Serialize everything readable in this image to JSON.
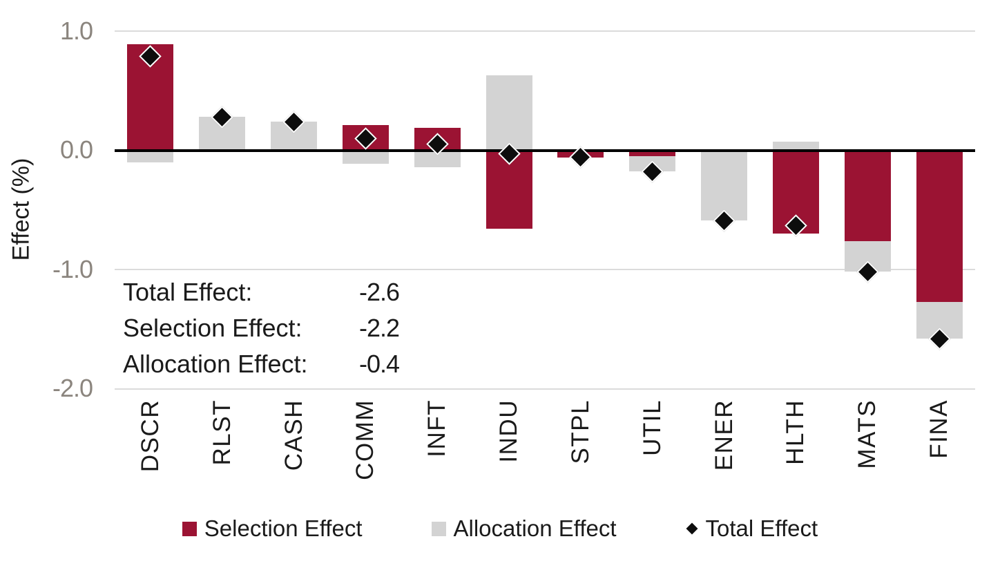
{
  "chart_data": {
    "type": "bar",
    "subtype": "stacked-bars-with-total-markers",
    "title": "",
    "ylabel": "Effect (%)",
    "ylim": [
      -2.0,
      1.0
    ],
    "ytick_labels": [
      "1.0",
      "0.0",
      "-1.0",
      "-2.0"
    ],
    "ytick_values": [
      1.0,
      0.0,
      -1.0,
      -2.0
    ],
    "grid": true,
    "legend_position": "bottom",
    "categories": [
      "DSCR",
      "RLST",
      "CASH",
      "COMM",
      "INFT",
      "INDU",
      "STPL",
      "UTIL",
      "ENER",
      "HLTH",
      "MATS",
      "FINA"
    ],
    "series": [
      {
        "name": "Selection Effect",
        "type": "bar",
        "color": "#9B1333",
        "values": [
          0.89,
          0.0,
          0.0,
          0.21,
          0.19,
          -0.66,
          -0.06,
          -0.05,
          0.0,
          -0.7,
          -0.76,
          -1.27
        ]
      },
      {
        "name": "Allocation Effect",
        "type": "bar",
        "color": "#D3D3D3",
        "values": [
          -0.1,
          0.28,
          0.24,
          -0.11,
          -0.14,
          0.63,
          0.0,
          -0.13,
          -0.59,
          0.07,
          -0.26,
          -0.31
        ]
      },
      {
        "name": "Total Effect",
        "type": "diamond-marker",
        "color": "#0D0D0D",
        "values": [
          0.79,
          0.28,
          0.24,
          0.1,
          0.05,
          -0.03,
          -0.06,
          -0.18,
          -0.59,
          -0.63,
          -1.02,
          -1.58
        ]
      }
    ],
    "annotations": {
      "rows": [
        {
          "label": "Total Effect:",
          "value": "-2.6"
        },
        {
          "label": "Selection Effect:",
          "value": "-2.2"
        },
        {
          "label": "Allocation Effect:",
          "value": "-0.4"
        }
      ]
    }
  },
  "colors": {
    "selection": "#9B1333",
    "allocation": "#D3D3D3",
    "total_marker": "#0D0D0D",
    "gridline": "#DBDBDB",
    "axis_line": "#000000",
    "tick_text": "#8B857E",
    "text": "#1A1A1A",
    "background": "#FFFFFF"
  }
}
